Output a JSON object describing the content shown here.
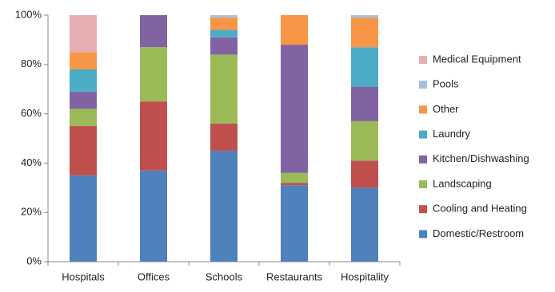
{
  "chart_data": {
    "type": "stacked_bar",
    "categories": [
      "Hospitals",
      "Offices",
      "Schools",
      "Restaurants",
      "Hospitality"
    ],
    "series": [
      {
        "name": "Domestic/Restroom",
        "color": "#4f81bd",
        "values": [
          35,
          37,
          45,
          31,
          30
        ]
      },
      {
        "name": "Cooling and Heating",
        "color": "#c0504d",
        "values": [
          20,
          28,
          11,
          1,
          11
        ]
      },
      {
        "name": "Landscaping",
        "color": "#9bbb59",
        "values": [
          7,
          22,
          28,
          4,
          16
        ]
      },
      {
        "name": "Kitchen/Dishwashing",
        "color": "#8064a2",
        "values": [
          7,
          13,
          7,
          52,
          14
        ]
      },
      {
        "name": "Laundry",
        "color": "#4bacc6",
        "values": [
          9,
          0,
          3,
          0,
          16
        ]
      },
      {
        "name": "Other",
        "color": "#f79646",
        "values": [
          7,
          0,
          5,
          12,
          12
        ]
      },
      {
        "name": "Pools",
        "color": "#a7c0de",
        "values": [
          0,
          0,
          1,
          0,
          1
        ]
      },
      {
        "name": "Medical Equipment",
        "color": "#e6b0b2",
        "values": [
          15,
          0,
          0,
          0,
          0
        ]
      }
    ],
    "ylim": [
      0,
      100
    ],
    "yticks": [
      {
        "value": 0,
        "label": "0%"
      },
      {
        "value": 20,
        "label": "20%"
      },
      {
        "value": 40,
        "label": "40%"
      },
      {
        "value": 60,
        "label": "60%"
      },
      {
        "value": 80,
        "label": "80%"
      },
      {
        "value": 100,
        "label": "100%"
      }
    ],
    "legend": "right"
  }
}
